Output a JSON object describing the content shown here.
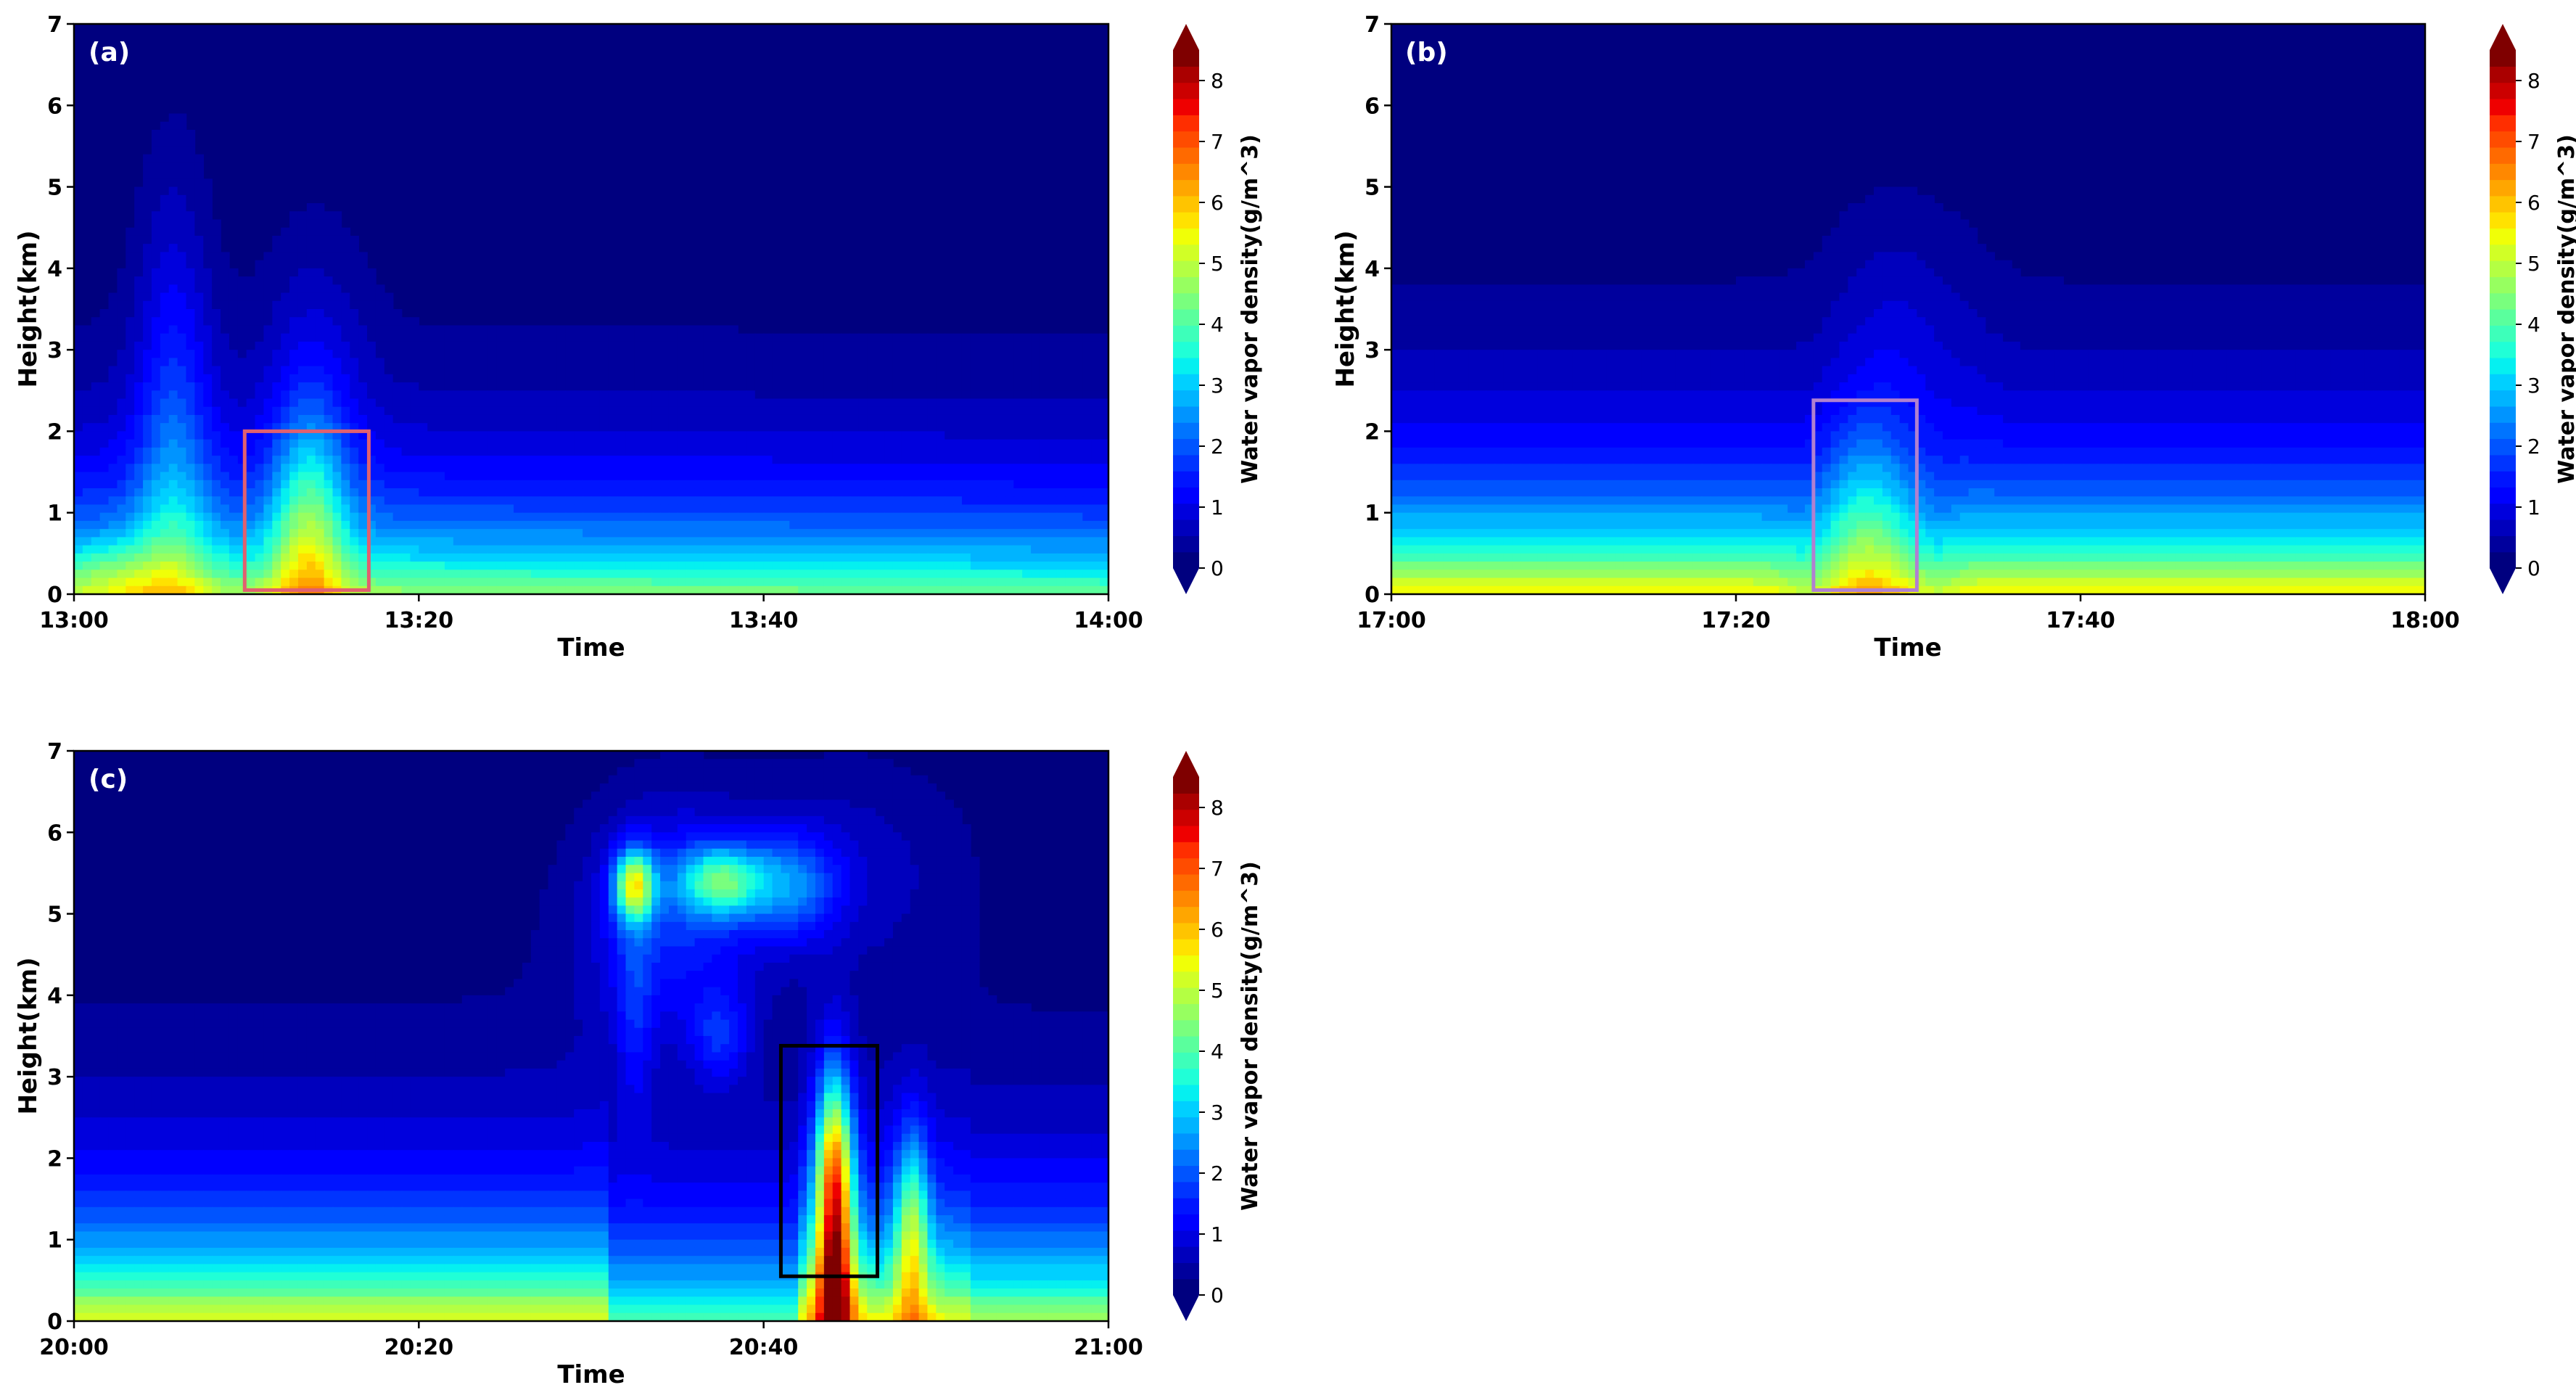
{
  "colors": {
    "background": "#00007f",
    "box_a": "#e06070",
    "box_b": "#b080d0",
    "box_c": "#000000",
    "axis": "#000000",
    "panel_label": "#ffffff"
  },
  "colorbar": {
    "label": "Water vapor density(g/m^3)",
    "ticks": [
      "0",
      "1",
      "2",
      "3",
      "4",
      "5",
      "6",
      "7",
      "8"
    ],
    "range": [
      0,
      8.5
    ],
    "extend": "both",
    "levels": [
      "#00007f",
      "#00009d",
      "#0000bd",
      "#0000dd",
      "#0000ff",
      "#0014ff",
      "#0034ff",
      "#0054ff",
      "#0074ff",
      "#0094ff",
      "#00b4ff",
      "#00d0ff",
      "#05f0f0",
      "#20ffd7",
      "#3dffba",
      "#5aff9d",
      "#79ff7e",
      "#97ff60",
      "#b4ff43",
      "#d1ff26",
      "#f0ff07",
      "#ffe200",
      "#ffc400",
      "#ffa600",
      "#ff8800",
      "#ff6a00",
      "#ff4c00",
      "#ff2e00",
      "#ef0000",
      "#cc0000",
      "#aa0000",
      "#7f0000"
    ]
  },
  "chart_data": [
    {
      "type": "heatmap",
      "panel_label": "(a)",
      "xlabel": "Time",
      "ylabel": "Height(km)",
      "x_ticks": [
        "13:00",
        "13:20",
        "13:40",
        "14:00"
      ],
      "x_range_min": [
        0,
        60
      ],
      "y_ticks": [
        "0",
        "1",
        "2",
        "3",
        "4",
        "5",
        "6",
        "7"
      ],
      "ylim": [
        0,
        7
      ],
      "highlight_box": {
        "t": [
          9.9,
          17.1
        ],
        "h": [
          0.05,
          2.0
        ]
      },
      "features": [
        {
          "t": 5.8,
          "h": 1.3,
          "dt": 1.6,
          "dh": 2.4,
          "amp": 1.5
        },
        {
          "t": 13.6,
          "h": 0.7,
          "dt": 1.5,
          "dh": 1.1,
          "amp": 2.3
        },
        {
          "t": 14.0,
          "h": 2.5,
          "dt": 2.2,
          "dh": 1.5,
          "amp": 0.6
        },
        {
          "t": 2.5,
          "h": 0.2,
          "dt": 2.0,
          "dh": 0.3,
          "amp": 0.9
        }
      ]
    },
    {
      "type": "heatmap",
      "panel_label": "(b)",
      "xlabel": "Time",
      "ylabel": "Height(km)",
      "x_ticks": [
        "17:00",
        "17:20",
        "17:40",
        "18:00"
      ],
      "x_range_min": [
        0,
        60
      ],
      "y_ticks": [
        "0",
        "1",
        "2",
        "3",
        "4",
        "5",
        "6",
        "7"
      ],
      "ylim": [
        0,
        7
      ],
      "highlight_box": {
        "t": [
          24.5,
          30.5
        ],
        "h": [
          0.05,
          2.38
        ]
      },
      "features": [
        {
          "t": 27.5,
          "h": 0.9,
          "dt": 1.8,
          "dh": 0.9,
          "amp": 1.2
        },
        {
          "t": 29.5,
          "h": 3.2,
          "dt": 3.0,
          "dh": 1.2,
          "amp": 0.5
        }
      ]
    },
    {
      "type": "heatmap",
      "panel_label": "(c)",
      "xlabel": "Time",
      "ylabel": "Height(km)",
      "x_ticks": [
        "20:00",
        "20:20",
        "20:40",
        "21:00"
      ],
      "x_range_min": [
        0,
        60
      ],
      "y_ticks": [
        "0",
        "1",
        "2",
        "3",
        "4",
        "5",
        "6",
        "7"
      ],
      "ylim": [
        0,
        7
      ],
      "highlight_box": {
        "t": [
          41.0,
          46.6
        ],
        "h": [
          0.55,
          3.38
        ]
      },
      "features": [
        {
          "t": 44.1,
          "h": 1.6,
          "dt": 0.75,
          "dh": 1.0,
          "amp": 6.0
        },
        {
          "t": 44.1,
          "h": 0.3,
          "dt": 0.8,
          "dh": 0.5,
          "amp": 2.5
        },
        {
          "t": 48.6,
          "h": 1.1,
          "dt": 0.7,
          "dh": 0.9,
          "amp": 2.8
        },
        {
          "t": 32.5,
          "h": 5.35,
          "dt": 0.8,
          "dh": 0.3,
          "amp": 4.3
        },
        {
          "t": 37.5,
          "h": 5.4,
          "dt": 1.7,
          "dh": 0.3,
          "amp": 3.0
        },
        {
          "t": 41.5,
          "h": 5.35,
          "dt": 2.0,
          "dh": 0.45,
          "amp": 1.8
        },
        {
          "t": 34.5,
          "h": 5.0,
          "dt": 3.5,
          "dh": 1.0,
          "amp": 1.5
        },
        {
          "t": 45.0,
          "h": 5.6,
          "dt": 5.0,
          "dh": 1.0,
          "amp": 0.6
        },
        {
          "t": 37.5,
          "h": 3.5,
          "dt": 1.2,
          "dh": 0.4,
          "amp": 1.1
        },
        {
          "t": 32.5,
          "h": 3.8,
          "dt": 0.8,
          "dh": 0.9,
          "amp": 0.9
        }
      ]
    }
  ]
}
